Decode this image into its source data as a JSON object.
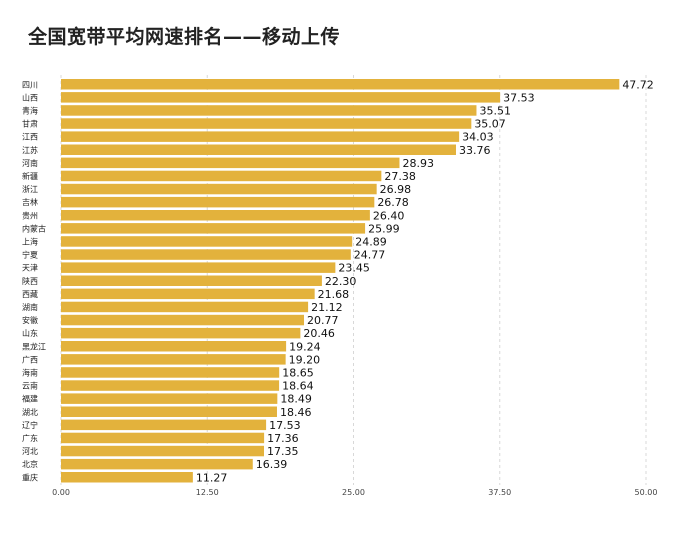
{
  "chart_data": {
    "type": "bar",
    "orientation": "horizontal",
    "title": "全国宽带平均网速排名——移动上传",
    "xlabel": "",
    "ylabel": "",
    "categories": [
      "四川",
      "山西",
      "青海",
      "甘肃",
      "江西",
      "江苏",
      "河南",
      "新疆",
      "浙江",
      "吉林",
      "贵州",
      "内蒙古",
      "上海",
      "宁夏",
      "天津",
      "陕西",
      "西藏",
      "湖南",
      "安徽",
      "山东",
      "黑龙江",
      "广西",
      "海南",
      "云南",
      "福建",
      "湖北",
      "辽宁",
      "广东",
      "河北",
      "北京",
      "重庆"
    ],
    "values": [
      47.72,
      37.53,
      35.51,
      35.07,
      34.03,
      33.76,
      28.93,
      27.38,
      26.98,
      26.78,
      26.4,
      25.99,
      24.89,
      24.77,
      23.45,
      22.3,
      21.68,
      21.12,
      20.77,
      20.46,
      19.24,
      19.2,
      18.65,
      18.64,
      18.49,
      18.46,
      17.53,
      17.36,
      17.35,
      16.39,
      11.27
    ],
    "value_labels": [
      "47.72",
      "37.53",
      "35.51",
      "35.07",
      "34.03",
      "33.76",
      "28.93",
      "27.38",
      "26.98",
      "26.78",
      "26.40",
      "25.99",
      "24.89",
      "24.77",
      "23.45",
      "22.30",
      "21.68",
      "21.12",
      "20.77",
      "20.46",
      "19.24",
      "19.20",
      "18.65",
      "18.64",
      "18.49",
      "18.46",
      "17.53",
      "17.36",
      "17.35",
      "16.39",
      "11.27"
    ],
    "xlim": [
      0,
      50
    ],
    "ticks": [
      "0.00",
      "12.50",
      "25.00",
      "37.50",
      "50.00"
    ],
    "tick_values": [
      0,
      12.5,
      25,
      37.5,
      50
    ],
    "grid": true,
    "bar_color": "#e3b23c"
  }
}
